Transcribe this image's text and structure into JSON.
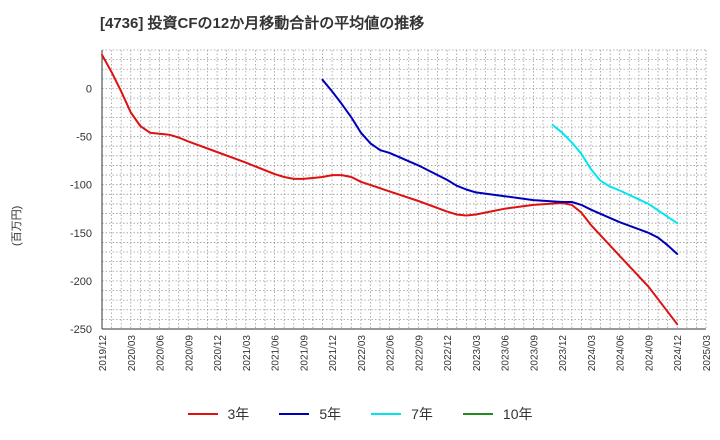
{
  "chart_data": {
    "type": "line",
    "title": "[4736]  投資CFの12か月移動合計の平均値の推移",
    "ylabel": "(百万円)",
    "xlabel": "",
    "ylim": [
      -250,
      40
    ],
    "yticks": [
      0,
      -50,
      -100,
      -150,
      -200,
      -250
    ],
    "xticks": [
      "2019/12",
      "2020/03",
      "2020/06",
      "2020/09",
      "2020/12",
      "2021/03",
      "2021/06",
      "2021/09",
      "2021/12",
      "2022/03",
      "2022/06",
      "2022/09",
      "2022/12",
      "2023/03",
      "2023/06",
      "2023/09",
      "2023/12",
      "2024/03",
      "2024/06",
      "2024/09",
      "2024/12",
      "2025/03"
    ],
    "grid": true,
    "legend_position": "bottom",
    "series": [
      {
        "name": "3年",
        "color": "#dd1111",
        "points": [
          [
            "2019/12",
            35
          ],
          [
            "2020/01",
            17
          ],
          [
            "2020/02",
            -3
          ],
          [
            "2020/03",
            -25
          ],
          [
            "2020/04",
            -39
          ],
          [
            "2020/05",
            -46
          ],
          [
            "2020/06",
            -47
          ],
          [
            "2020/07",
            -48
          ],
          [
            "2020/08",
            -51
          ],
          [
            "2020/09",
            -55
          ],
          [
            "2020/12",
            -66
          ],
          [
            "2021/03",
            -77
          ],
          [
            "2021/06",
            -89
          ],
          [
            "2021/07",
            -92
          ],
          [
            "2021/08",
            -94
          ],
          [
            "2021/09",
            -94
          ],
          [
            "2021/10",
            -93
          ],
          [
            "2021/11",
            -92
          ],
          [
            "2021/12",
            -90
          ],
          [
            "2022/01",
            -90
          ],
          [
            "2022/02",
            -92
          ],
          [
            "2022/03",
            -97
          ],
          [
            "2022/06",
            -107
          ],
          [
            "2022/09",
            -117
          ],
          [
            "2022/12",
            -128
          ],
          [
            "2023/01",
            -131
          ],
          [
            "2023/02",
            -132
          ],
          [
            "2023/03",
            -131
          ],
          [
            "2023/06",
            -125
          ],
          [
            "2023/09",
            -121
          ],
          [
            "2023/12",
            -119
          ],
          [
            "2024/01",
            -121
          ],
          [
            "2024/02",
            -129
          ],
          [
            "2024/03",
            -142
          ],
          [
            "2024/06",
            -174
          ],
          [
            "2024/09",
            -206
          ],
          [
            "2024/12",
            -245
          ]
        ]
      },
      {
        "name": "5年",
        "color": "#0000bb",
        "points": [
          [
            "2021/11",
            9
          ],
          [
            "2021/12",
            -3
          ],
          [
            "2022/01",
            -16
          ],
          [
            "2022/02",
            -30
          ],
          [
            "2022/03",
            -46
          ],
          [
            "2022/04",
            -57
          ],
          [
            "2022/05",
            -64
          ],
          [
            "2022/06",
            -67
          ],
          [
            "2022/09",
            -80
          ],
          [
            "2022/12",
            -95
          ],
          [
            "2023/01",
            -101
          ],
          [
            "2023/02",
            -105
          ],
          [
            "2023/03",
            -108
          ],
          [
            "2023/06",
            -112
          ],
          [
            "2023/09",
            -116
          ],
          [
            "2023/12",
            -118
          ],
          [
            "2024/01",
            -118
          ],
          [
            "2024/02",
            -121
          ],
          [
            "2024/03",
            -126
          ],
          [
            "2024/06",
            -139
          ],
          [
            "2024/09",
            -150
          ],
          [
            "2024/10",
            -155
          ],
          [
            "2024/11",
            -163
          ],
          [
            "2024/12",
            -172
          ]
        ]
      },
      {
        "name": "7年",
        "color": "#00e5ee",
        "points": [
          [
            "2023/11",
            -38
          ],
          [
            "2023/12",
            -46
          ],
          [
            "2024/01",
            -56
          ],
          [
            "2024/02",
            -68
          ],
          [
            "2024/03",
            -84
          ],
          [
            "2024/04",
            -96
          ],
          [
            "2024/05",
            -102
          ],
          [
            "2024/06",
            -106
          ],
          [
            "2024/09",
            -120
          ],
          [
            "2024/12",
            -140
          ]
        ]
      },
      {
        "name": "10年",
        "color": "#228b22",
        "points": []
      }
    ]
  }
}
